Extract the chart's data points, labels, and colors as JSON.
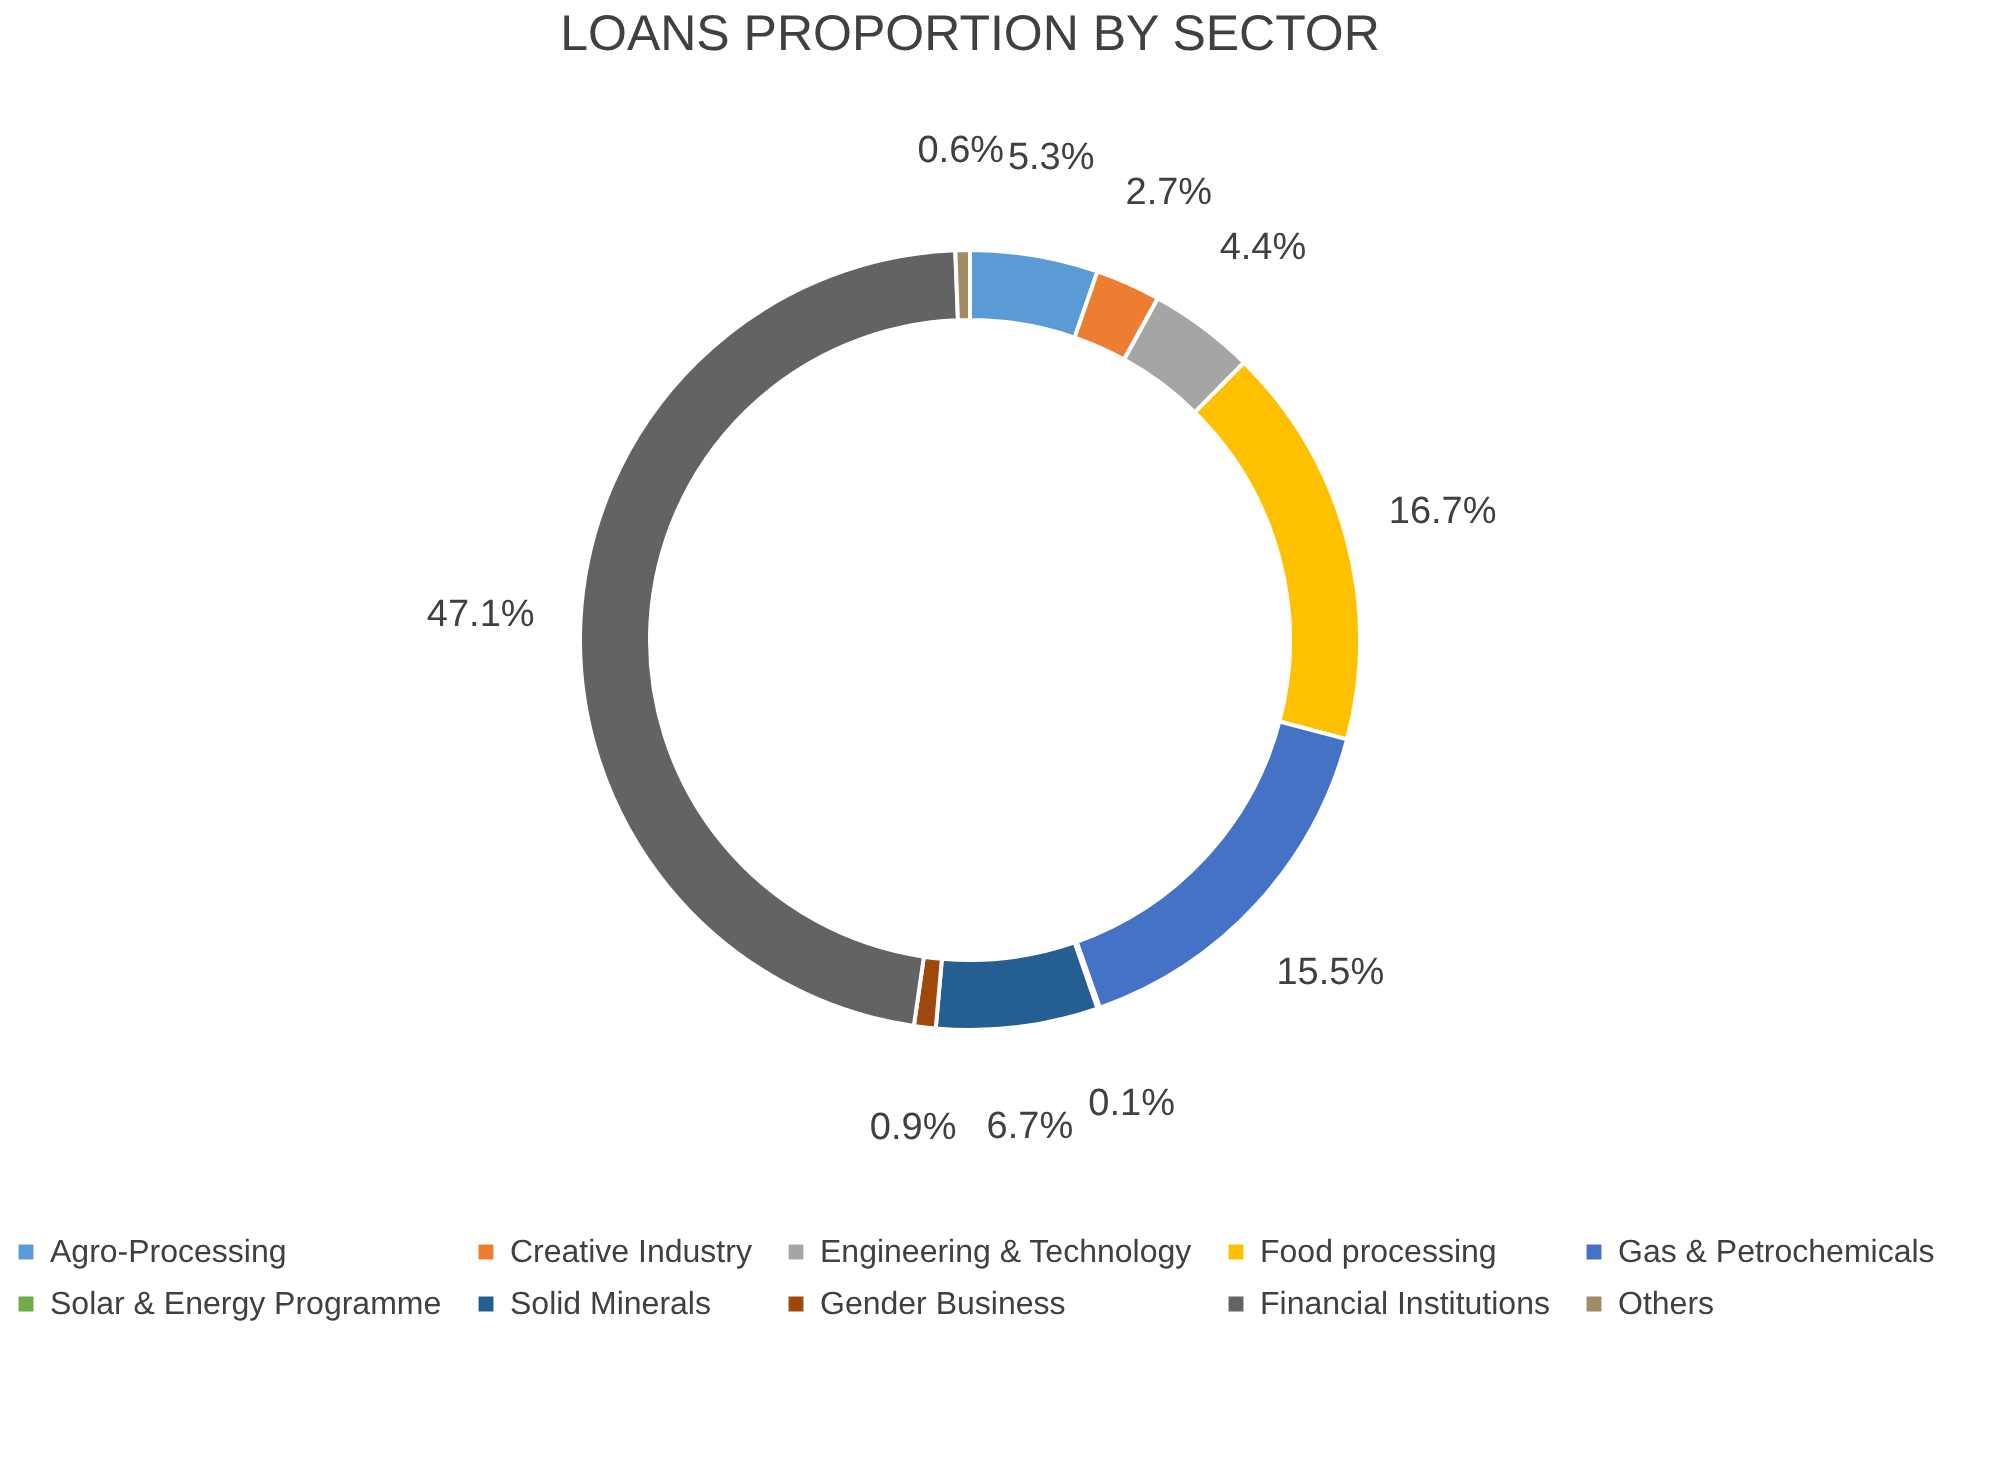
{
  "chart_data": {
    "type": "donut",
    "title": "LOANS PROPORTION BY SECTOR",
    "categories": [
      "Agro-Processing",
      "Creative Industry",
      "Engineering & Technology",
      "Food processing",
      "Gas & Petrochemicals",
      "Solar & Energy Programme",
      "Solid Minerals",
      "Gender Business",
      "Financial Institutions",
      "Others"
    ],
    "values": [
      5.3,
      2.7,
      4.4,
      16.7,
      15.5,
      0.1,
      6.7,
      0.9,
      47.1,
      0.6
    ],
    "value_labels": [
      "5.3%",
      "2.7%",
      "4.4%",
      "16.7%",
      "15.5%",
      "0.1%",
      "6.7%",
      "0.9%",
      "47.1%",
      "0.6%"
    ],
    "colors": [
      "#5b9bd5",
      "#ed7d31",
      "#a5a5a5",
      "#ffc000",
      "#4472c4",
      "#70ad47",
      "#255e91",
      "#9e480e",
      "#636363",
      "#a08b63"
    ],
    "legend": "bottom"
  }
}
